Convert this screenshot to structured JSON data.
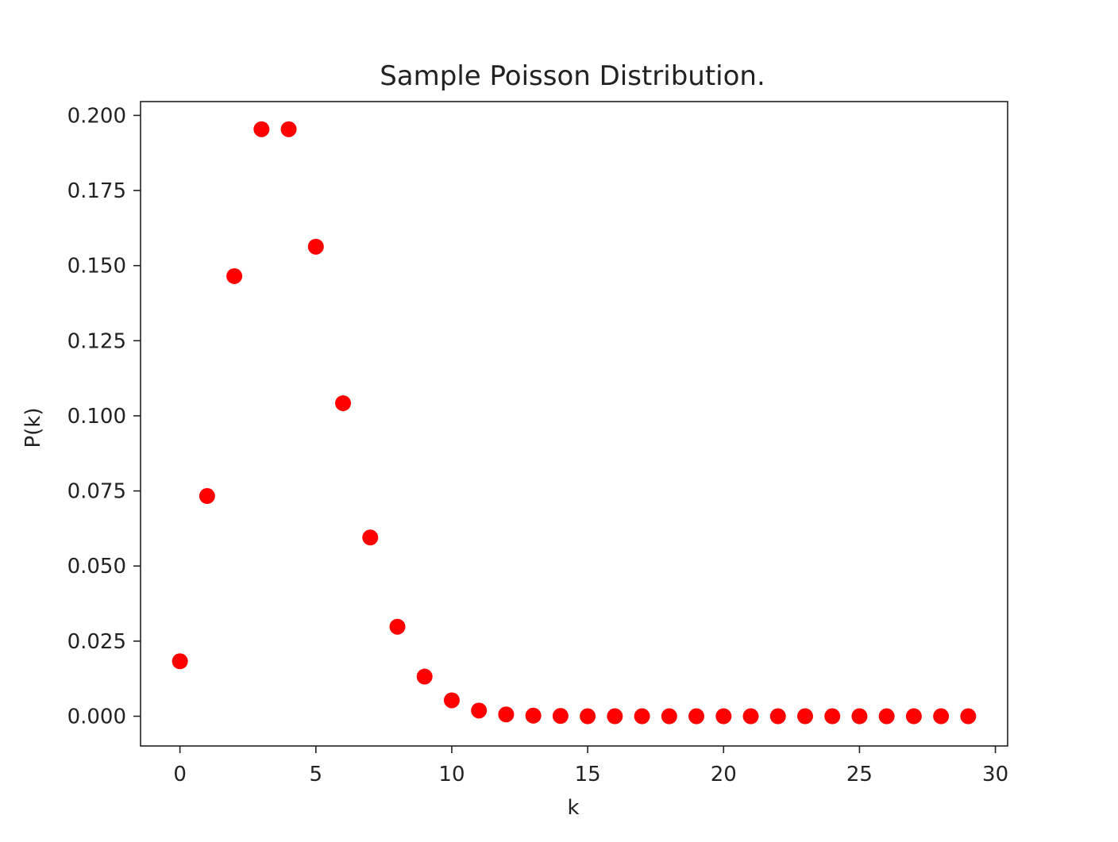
{
  "chart_data": {
    "type": "scatter",
    "title": "Sample Poisson Distribution.",
    "xlabel": "k",
    "ylabel": "P(k)",
    "xlim": [
      -1.45,
      30.45
    ],
    "ylim": [
      -0.0099,
      0.2046
    ],
    "x_ticks": [
      0,
      5,
      10,
      15,
      20,
      25,
      30
    ],
    "x_tick_labels": [
      "0",
      "5",
      "10",
      "15",
      "20",
      "25",
      "30"
    ],
    "y_ticks": [
      0.0,
      0.025,
      0.05,
      0.075,
      0.1,
      0.125,
      0.15,
      0.175,
      0.2
    ],
    "y_tick_labels": [
      "0.000",
      "0.025",
      "0.050",
      "0.075",
      "0.100",
      "0.125",
      "0.150",
      "0.175",
      "0.200"
    ],
    "grid": false,
    "marker_color": "#ff0000",
    "x": [
      0,
      1,
      2,
      3,
      4,
      5,
      6,
      7,
      8,
      9,
      10,
      11,
      12,
      13,
      14,
      15,
      16,
      17,
      18,
      19,
      20,
      21,
      22,
      23,
      24,
      25,
      26,
      27,
      28,
      29
    ],
    "y": [
      0.0183,
      0.0733,
      0.1465,
      0.1954,
      0.1954,
      0.1563,
      0.1042,
      0.0595,
      0.0298,
      0.0132,
      0.0053,
      0.0019,
      0.0006,
      0.0002,
      0.0001,
      0.0,
      0.0,
      0.0,
      0.0,
      0.0,
      0.0,
      0.0,
      0.0,
      0.0,
      0.0,
      0.0,
      0.0,
      0.0,
      0.0,
      0.0
    ]
  }
}
